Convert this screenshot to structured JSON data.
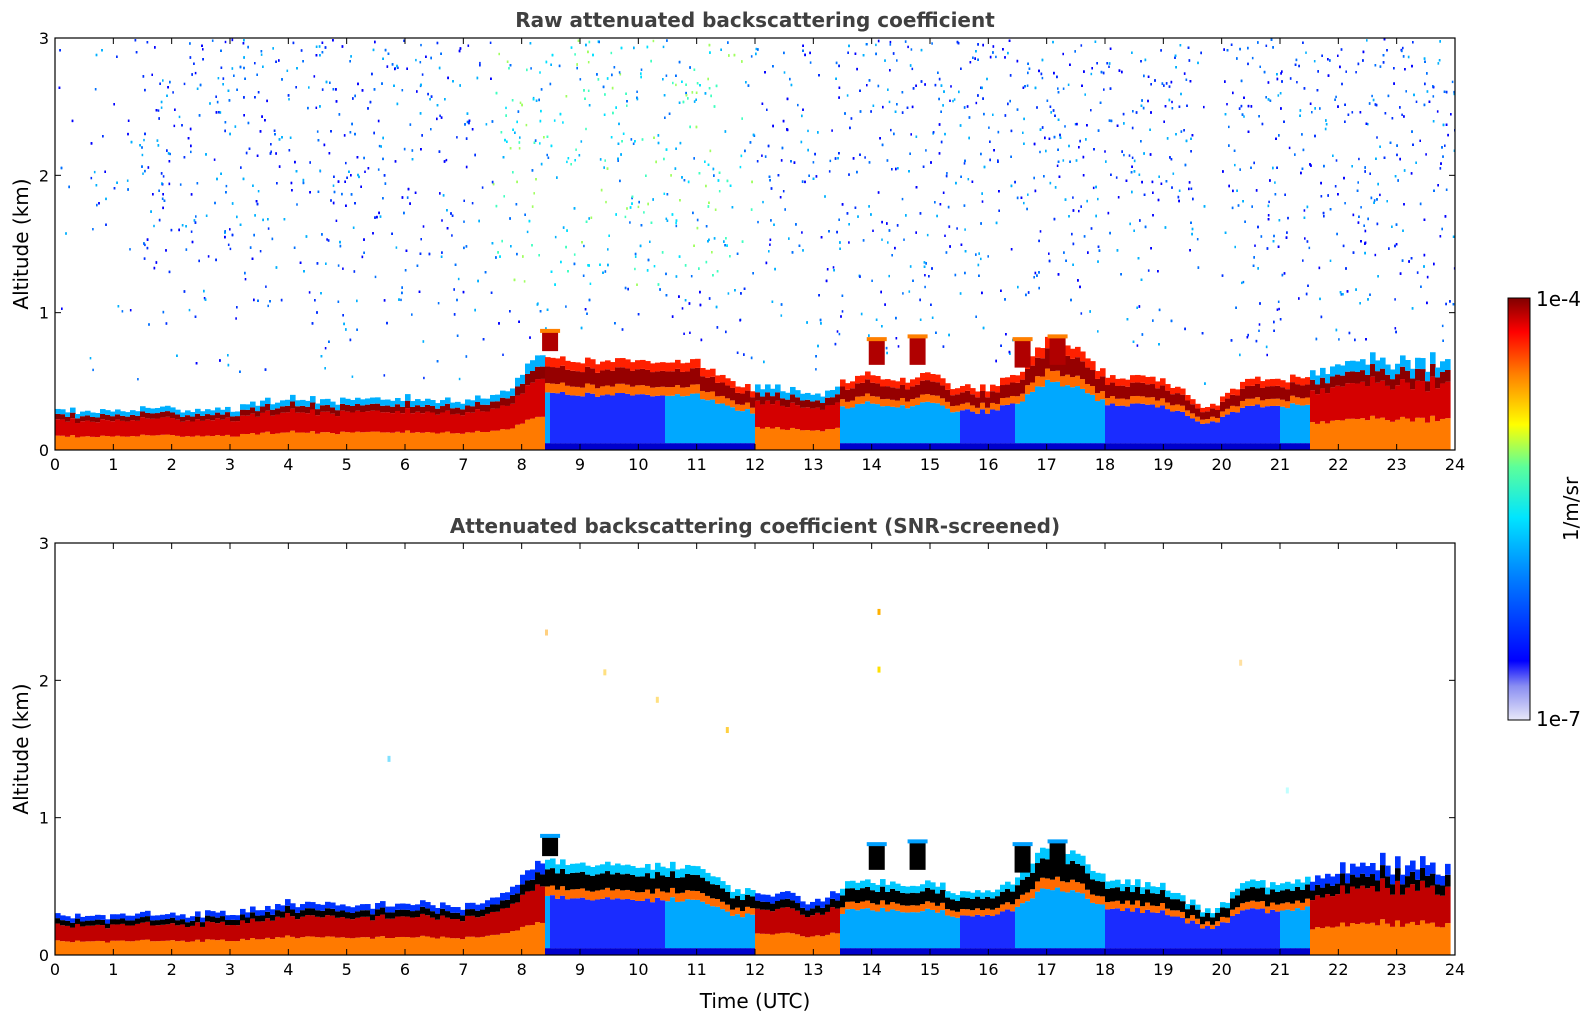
{
  "chart_data": [
    {
      "type": "heatmap",
      "title": "Raw attenuated backscattering coefficient",
      "xlabel": "",
      "ylabel": "Altitude (km)",
      "xlim": [
        0,
        24
      ],
      "ylim": [
        0,
        3
      ],
      "xticks": [
        "0",
        "1",
        "2",
        "3",
        "4",
        "5",
        "6",
        "7",
        "8",
        "9",
        "10",
        "11",
        "12",
        "13",
        "14",
        "15",
        "16",
        "17",
        "18",
        "19",
        "20",
        "21",
        "22",
        "23",
        "24"
      ],
      "yticks": [
        "0",
        "1",
        "2",
        "3"
      ],
      "noise_above_layer": true,
      "layer_top_km": [
        [
          0,
          0.28
        ],
        [
          1,
          0.28
        ],
        [
          1.4,
          0.3
        ],
        [
          2,
          0.3
        ],
        [
          3,
          0.3
        ],
        [
          4,
          0.38
        ],
        [
          5,
          0.35
        ],
        [
          6,
          0.38
        ],
        [
          7,
          0.35
        ],
        [
          7.8,
          0.45
        ],
        [
          8.3,
          0.7
        ],
        [
          9,
          0.65
        ],
        [
          10,
          0.65
        ],
        [
          11,
          0.65
        ],
        [
          11.5,
          0.5
        ],
        [
          12,
          0.45
        ],
        [
          12.5,
          0.45
        ],
        [
          13,
          0.38
        ],
        [
          13.5,
          0.5
        ],
        [
          14,
          0.55
        ],
        [
          14.5,
          0.5
        ],
        [
          15,
          0.55
        ],
        [
          15.5,
          0.45
        ],
        [
          16,
          0.45
        ],
        [
          16.5,
          0.55
        ],
        [
          17,
          0.8
        ],
        [
          17.5,
          0.75
        ],
        [
          18,
          0.55
        ],
        [
          19,
          0.5
        ],
        [
          19.8,
          0.3
        ],
        [
          20.5,
          0.55
        ],
        [
          21,
          0.5
        ],
        [
          22,
          0.6
        ],
        [
          23,
          0.65
        ],
        [
          23.9,
          0.6
        ]
      ],
      "aerosol_bottom_km_start": 8.4
    },
    {
      "type": "heatmap",
      "title": "Attenuated backscattering coefficient (SNR-screened)",
      "xlabel": "Time (UTC)",
      "ylabel": "Altitude (km)",
      "xlim": [
        0,
        24
      ],
      "ylim": [
        0,
        3
      ],
      "xticks": [
        "0",
        "1",
        "2",
        "3",
        "4",
        "5",
        "6",
        "7",
        "8",
        "9",
        "10",
        "11",
        "12",
        "13",
        "14",
        "15",
        "16",
        "17",
        "18",
        "19",
        "20",
        "21",
        "22",
        "23",
        "24"
      ],
      "yticks": [
        "0",
        "1",
        "2",
        "3"
      ],
      "noise_above_layer": false
    }
  ],
  "colorbar": {
    "label": "1/m/sr",
    "max_label": "1e-4",
    "min_label": "1e-7",
    "min_value": 1e-07,
    "max_value": 0.0001,
    "scale": "log",
    "colormap": "jet"
  }
}
